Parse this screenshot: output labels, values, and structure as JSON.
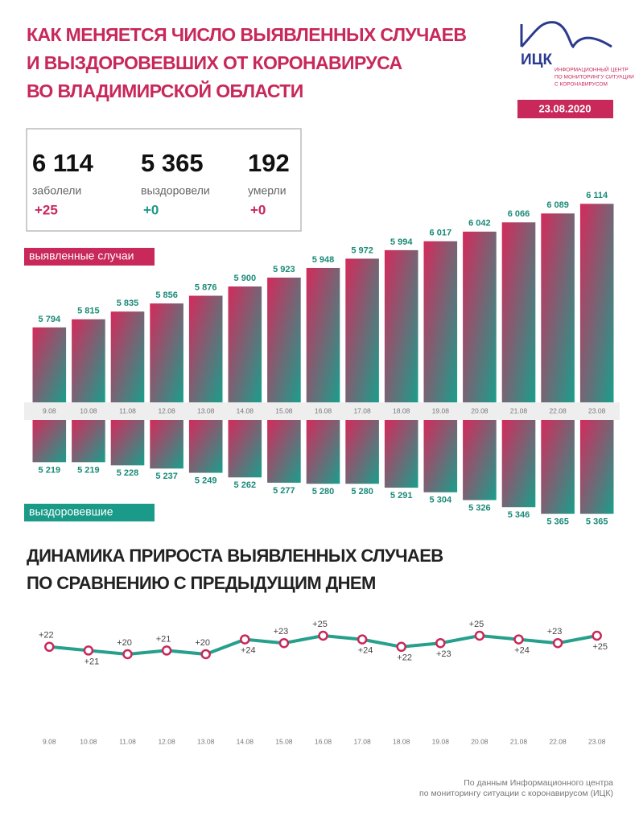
{
  "header": {
    "title": [
      "КАК МЕНЯЕТСЯ ЧИСЛО ВЫЯВЛЕННЫХ СЛУЧАЕВ",
      "И ВЫЗДОРОВЕВШИХ ОТ КОРОНАВИРУСА",
      "ВО ВЛАДИМИРСКОЙ ОБЛАСТИ"
    ]
  },
  "logo": {
    "name": "ИЦК",
    "lines": [
      "ИНФОРМАЦИОННЫЙ ЦЕНТР",
      "ПО МОНИТОРИНГУ СИТУАЦИИ",
      "С КОРОНАВИРУСОМ"
    ],
    "date": "23.08.2020"
  },
  "stats": [
    {
      "value": "6 114",
      "label": "заболели",
      "change": "+25",
      "color": "#c8285a"
    },
    {
      "value": "5 365",
      "label": "выздоровели",
      "change": "+0",
      "color": "#1a9a88"
    },
    {
      "value": "192",
      "label": "умерли",
      "change": "+0",
      "color": "#c8285a"
    }
  ],
  "chart_data": [
    {
      "type": "bar",
      "title": "выявленные случаи",
      "color": "#c8285a",
      "gradient": [
        "#d42a5c",
        "#1a9e8c"
      ],
      "direction": "up",
      "categories": [
        "9.08",
        "10.08",
        "11.08",
        "12.08",
        "13.08",
        "14.08",
        "15.08",
        "16.08",
        "17.08",
        "18.08",
        "19.08",
        "20.08",
        "21.08",
        "22.08",
        "23.08"
      ],
      "values": [
        5794,
        5815,
        5835,
        5856,
        5876,
        5900,
        5923,
        5948,
        5972,
        5994,
        6017,
        6042,
        6066,
        6089,
        6114
      ],
      "value_labels": [
        "5 794",
        "5 815",
        "5 835",
        "5 856",
        "5 876",
        "5 900",
        "5 923",
        "5 948",
        "5 972",
        "5 994",
        "6 017",
        "6 042",
        "6 066",
        "6 089",
        "6 114"
      ],
      "ylim": [
        5600,
        6150
      ]
    },
    {
      "type": "bar",
      "title": "выздоровевшие",
      "color": "#1a9a88",
      "gradient": [
        "#d42a5c",
        "#1a9e8c"
      ],
      "direction": "down",
      "values": [
        5219,
        5219,
        5228,
        5237,
        5249,
        5262,
        5277,
        5280,
        5280,
        5291,
        5304,
        5326,
        5346,
        5365,
        5365
      ],
      "value_labels": [
        "5 219",
        "5 219",
        "5 228",
        "5 237",
        "5 249",
        "5 262",
        "5 277",
        "5 280",
        "5 280",
        "5 291",
        "5 304",
        "5 326",
        "5 346",
        "5 365",
        "5 365"
      ],
      "ylim": [
        5100,
        5400
      ]
    },
    {
      "type": "line",
      "title": [
        "ДИНАМИКА ПРИРОСТА ВЫЯВЛЕННЫХ СЛУЧАЕВ",
        "ПО СРАВНЕНИЮ С ПРЕДЫДУЩИМ ДНЕМ"
      ],
      "color": "#26a08c",
      "marker_color": "#c8285a",
      "categories": [
        "9.08",
        "10.08",
        "11.08",
        "12.08",
        "13.08",
        "14.08",
        "15.08",
        "16.08",
        "17.08",
        "18.08",
        "19.08",
        "20.08",
        "21.08",
        "22.08",
        "23.08"
      ],
      "values": [
        22,
        21,
        20,
        21,
        20,
        24,
        23,
        25,
        24,
        22,
        23,
        25,
        24,
        23,
        25
      ],
      "value_labels": [
        "+22",
        "+21",
        "+20",
        "+21",
        "+20",
        "+24",
        "+23",
        "+25",
        "+24",
        "+22",
        "+23",
        "+25",
        "+24",
        "+23",
        "+25"
      ],
      "ylim": [
        15,
        30
      ]
    }
  ],
  "source": [
    "По данным Информационного центра",
    "по мониторингу ситуации с коронавирусом (ИЦК)"
  ]
}
